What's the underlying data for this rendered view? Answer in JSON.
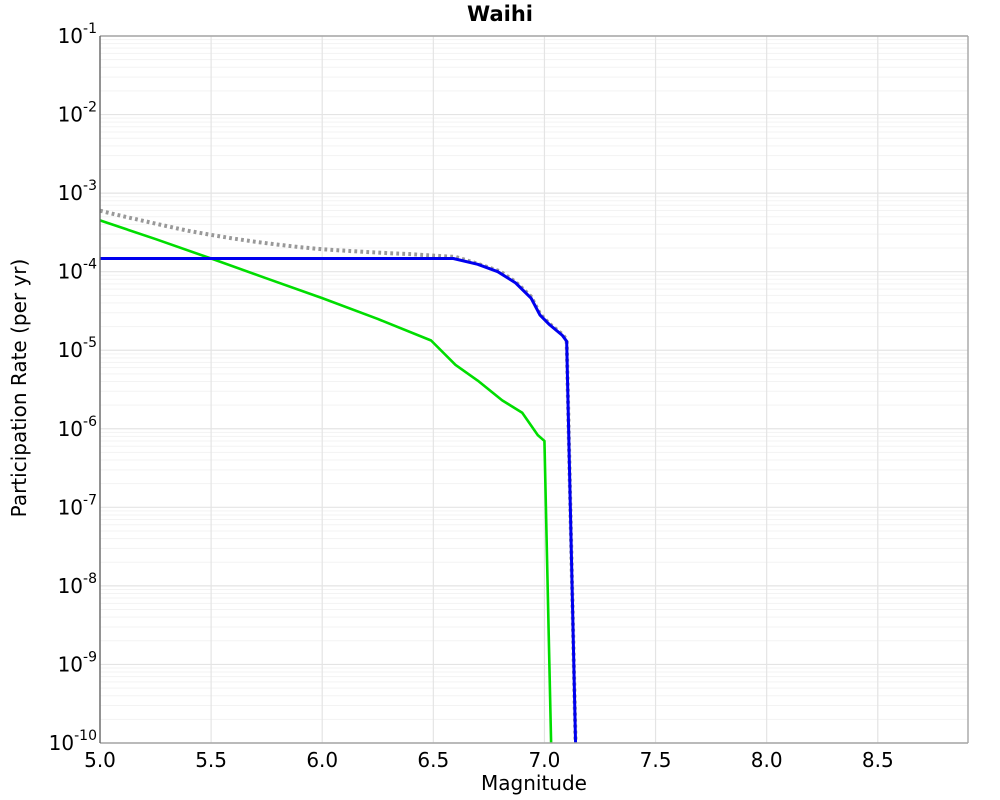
{
  "chart_data": {
    "type": "line",
    "title": "Waihi",
    "xlabel": "Magnitude",
    "ylabel": "Participation Rate (per yr)",
    "x_axis": {
      "min": 5.0,
      "max": 8.906,
      "ticks": [
        5.0,
        5.5,
        6.0,
        6.5,
        7.0,
        7.5,
        8.0,
        8.5
      ],
      "tick_labels": [
        "5.0",
        "5.5",
        "6.0",
        "6.5",
        "7.0",
        "7.5",
        "8.0",
        "8.5"
      ]
    },
    "y_axis": {
      "scale": "log",
      "min": 1e-10,
      "max": 0.1,
      "tick_base": "10",
      "tick_exponents": [
        "-1",
        "-2",
        "-3",
        "-4",
        "-5",
        "-6",
        "-7",
        "-8",
        "-9",
        "-10"
      ],
      "minor_gridlines": true
    },
    "grid": {
      "major_color": "#e4e4e4",
      "minor_color": "#f3f3f3",
      "spine_color": "#a6a6a6",
      "left_spine_color": "#666666"
    },
    "series": [
      {
        "name": "gray-dotted-total",
        "color": "#999999",
        "style": "dotted",
        "width": 4,
        "points": [
          [
            5.0,
            0.000597
          ],
          [
            5.1,
            0.00051
          ],
          [
            5.2,
            0.00044
          ],
          [
            5.3,
            0.00038
          ],
          [
            5.4,
            0.00033
          ],
          [
            5.5,
            0.000294
          ],
          [
            5.6,
            0.000264
          ],
          [
            5.7,
            0.00024
          ],
          [
            5.8,
            0.000221
          ],
          [
            5.9,
            0.000205
          ],
          [
            6.0,
            0.000193
          ],
          [
            6.1,
            0.000185
          ],
          [
            6.2,
            0.000178
          ],
          [
            6.3,
            0.000172
          ],
          [
            6.4,
            0.000167
          ],
          [
            6.5,
            0.00016
          ],
          [
            6.6,
            0.000154
          ],
          [
            6.7,
            0.000126
          ],
          [
            6.8,
            0.000101
          ],
          [
            6.87,
            7.4e-05
          ],
          [
            6.94,
            4.8e-05
          ],
          [
            6.98,
            2.9e-05
          ],
          [
            7.02,
            2.2e-05
          ],
          [
            7.08,
            1.6e-05
          ],
          [
            7.1,
            1.35e-05
          ],
          [
            7.14,
            1e-10
          ]
        ]
      },
      {
        "name": "green-solid",
        "color": "#00dd00",
        "style": "solid",
        "width": 2.6,
        "points": [
          [
            5.0,
            0.00045
          ],
          [
            5.25,
            0.00026
          ],
          [
            5.5,
            0.000147
          ],
          [
            5.75,
            8.2e-05
          ],
          [
            6.0,
            4.6e-05
          ],
          [
            6.25,
            2.5e-05
          ],
          [
            6.49,
            1.33e-05
          ],
          [
            6.6,
            6.5e-06
          ],
          [
            6.7,
            4.1e-06
          ],
          [
            6.81,
            2.3e-06
          ],
          [
            6.9,
            1.6e-06
          ],
          [
            6.97,
            8.3e-07
          ],
          [
            7.0,
            7e-07
          ],
          [
            7.03,
            1e-10
          ]
        ]
      },
      {
        "name": "blue-solid",
        "color": "#0000ee",
        "style": "solid",
        "width": 3,
        "points": [
          [
            5.0,
            0.000147
          ],
          [
            6.59,
            0.000147
          ],
          [
            6.7,
            0.000124
          ],
          [
            6.79,
            0.0001
          ],
          [
            6.87,
            7.2e-05
          ],
          [
            6.94,
            4.6e-05
          ],
          [
            6.98,
            2.8e-05
          ],
          [
            7.02,
            2.15e-05
          ],
          [
            7.08,
            1.55e-05
          ],
          [
            7.1,
            1.3e-05
          ],
          [
            7.14,
            1e-10
          ]
        ]
      }
    ]
  }
}
